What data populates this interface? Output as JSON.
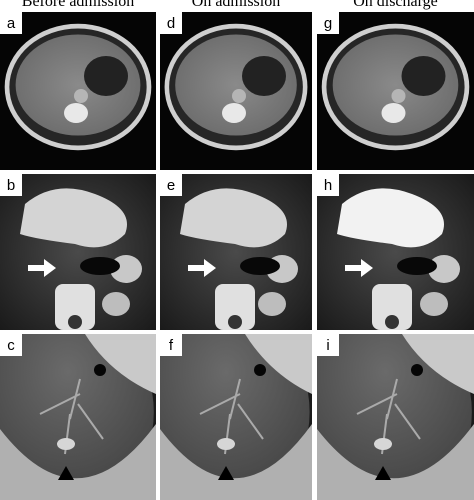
{
  "header": {
    "columns": [
      "Before admission",
      "On admission",
      "On discharge"
    ]
  },
  "panels": [
    {
      "label": "a"
    },
    {
      "label": "b"
    },
    {
      "label": "c"
    },
    {
      "label": "d"
    },
    {
      "label": "e"
    },
    {
      "label": "f"
    },
    {
      "label": "g"
    },
    {
      "label": "h"
    },
    {
      "label": "i"
    }
  ]
}
